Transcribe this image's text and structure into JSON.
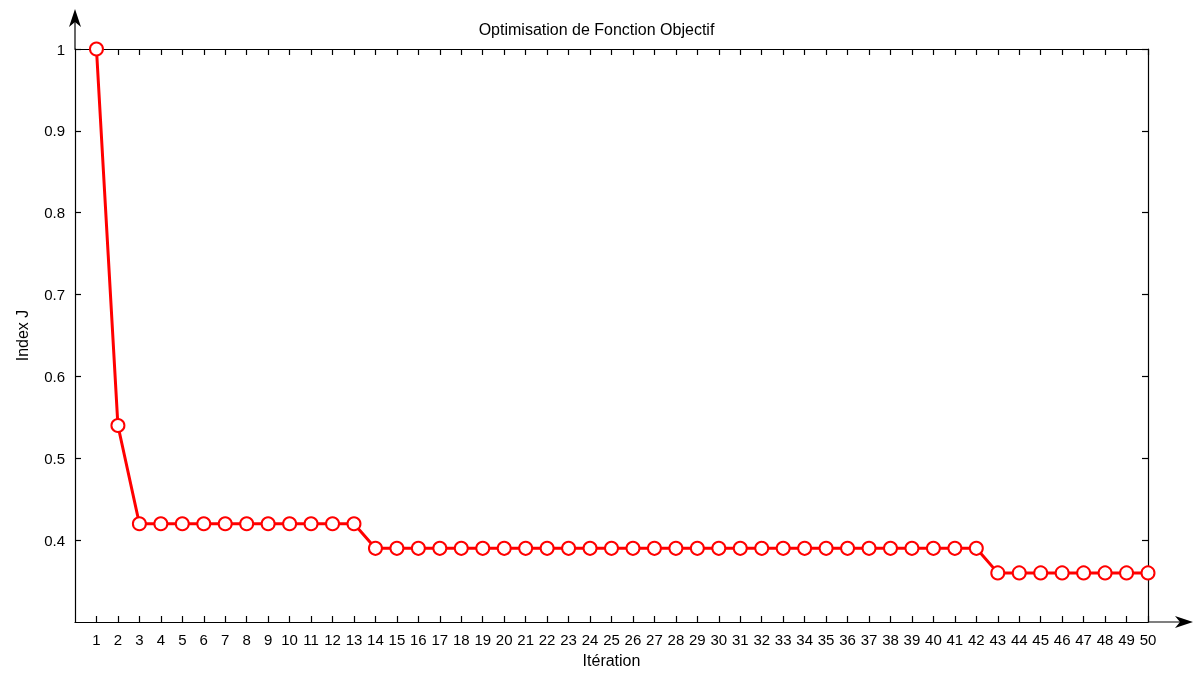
{
  "chart_data": {
    "type": "line",
    "title": "Optimisation de Fonction Objectif",
    "xlabel": "Itération",
    "ylabel": "Index J",
    "x": [
      1,
      2,
      3,
      4,
      5,
      6,
      7,
      8,
      9,
      10,
      11,
      12,
      13,
      14,
      15,
      16,
      17,
      18,
      19,
      20,
      21,
      22,
      23,
      24,
      25,
      26,
      27,
      28,
      29,
      30,
      31,
      32,
      33,
      34,
      35,
      36,
      37,
      38,
      39,
      40,
      41,
      42,
      43,
      44,
      45,
      46,
      47,
      48,
      49,
      50
    ],
    "series": [
      {
        "color": "#ff0000",
        "values": [
          1.0,
          0.54,
          0.42,
          0.42,
          0.42,
          0.42,
          0.42,
          0.42,
          0.42,
          0.42,
          0.42,
          0.42,
          0.42,
          0.39,
          0.39,
          0.39,
          0.39,
          0.39,
          0.39,
          0.39,
          0.39,
          0.39,
          0.39,
          0.39,
          0.39,
          0.39,
          0.39,
          0.39,
          0.39,
          0.39,
          0.39,
          0.39,
          0.39,
          0.39,
          0.39,
          0.39,
          0.39,
          0.39,
          0.39,
          0.39,
          0.39,
          0.39,
          0.36,
          0.36,
          0.36,
          0.36,
          0.36,
          0.36,
          0.36,
          0.36
        ]
      }
    ],
    "xlim": [
      0,
      50
    ],
    "xticks": [
      1,
      2,
      3,
      4,
      5,
      6,
      7,
      8,
      9,
      10,
      11,
      12,
      13,
      14,
      15,
      16,
      17,
      18,
      19,
      20,
      21,
      22,
      23,
      24,
      25,
      26,
      27,
      28,
      29,
      30,
      31,
      32,
      33,
      34,
      35,
      36,
      37,
      38,
      39,
      40,
      41,
      42,
      43,
      44,
      45,
      46,
      47,
      48,
      49,
      50
    ],
    "ylim": [
      0.3,
      1
    ],
    "yticks": [
      0.4,
      0.5,
      0.6,
      0.7,
      0.8,
      0.9,
      1
    ],
    "grid": false,
    "marker": "circle",
    "line_style": "solid"
  }
}
